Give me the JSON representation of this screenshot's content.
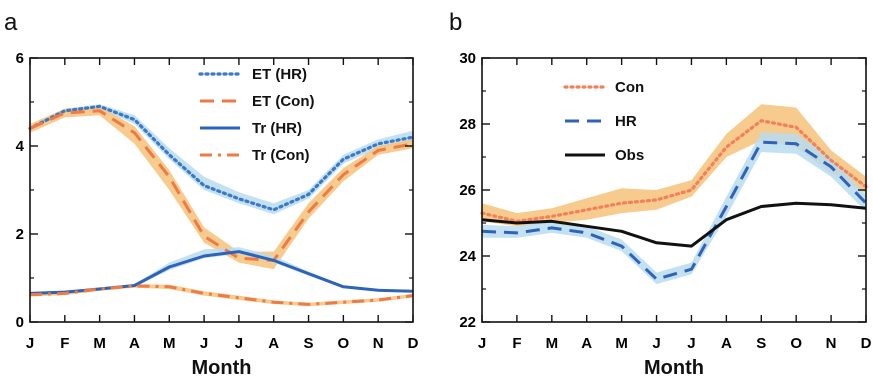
{
  "chart_data": [
    {
      "type": "line",
      "panel_label": "a",
      "xlabel": "Month",
      "ylabel": "",
      "categories": [
        "J",
        "F",
        "M",
        "A",
        "M",
        "J",
        "J",
        "A",
        "S",
        "O",
        "N",
        "D"
      ],
      "ylim": [
        0,
        6
      ],
      "yticks": [
        0,
        2,
        4,
        6
      ],
      "legend_position": "top-center",
      "series": [
        {
          "name": "ET (HR)",
          "style": "dotted",
          "color": "#3a78c8",
          "values": [
            4.4,
            4.8,
            4.9,
            4.6,
            3.8,
            3.1,
            2.8,
            2.55,
            2.9,
            3.7,
            4.05,
            4.2
          ],
          "band_lo": [
            4.35,
            4.75,
            4.85,
            4.5,
            3.7,
            3.0,
            2.7,
            2.45,
            2.8,
            3.6,
            3.95,
            4.1
          ],
          "band_hi": [
            4.45,
            4.85,
            4.95,
            4.7,
            3.95,
            3.3,
            2.95,
            2.7,
            3.0,
            3.8,
            4.15,
            4.35
          ],
          "band_color": "#b8dcef"
        },
        {
          "name": "ET (Con)",
          "style": "dashed",
          "color": "#ee7a45",
          "values": [
            4.4,
            4.75,
            4.8,
            4.3,
            3.3,
            1.95,
            1.45,
            1.4,
            2.5,
            3.35,
            3.9,
            4.05
          ],
          "band_lo": [
            4.3,
            4.65,
            4.7,
            4.05,
            3.0,
            1.8,
            1.35,
            1.2,
            2.35,
            3.2,
            3.8,
            3.95
          ],
          "band_hi": [
            4.5,
            4.85,
            4.9,
            4.45,
            3.45,
            2.15,
            1.6,
            1.6,
            2.7,
            3.5,
            4.0,
            4.15
          ],
          "band_color": "#f6c27a"
        },
        {
          "name": "Tr (HR)",
          "style": "solid",
          "color": "#2f63b8",
          "values": [
            0.65,
            0.68,
            0.75,
            0.83,
            1.25,
            1.5,
            1.6,
            1.4,
            1.1,
            0.8,
            0.72,
            0.7
          ],
          "band_lo": [
            0.62,
            0.65,
            0.72,
            0.8,
            1.18,
            1.45,
            1.55,
            1.35,
            1.05,
            0.77,
            0.69,
            0.67
          ],
          "band_hi": [
            0.68,
            0.71,
            0.78,
            0.86,
            1.35,
            1.65,
            1.7,
            1.5,
            1.15,
            0.83,
            0.75,
            0.73
          ],
          "band_color": "#b8dcef"
        },
        {
          "name": "Tr (Con)",
          "style": "dashdot",
          "color": "#ee7a45",
          "values": [
            0.62,
            0.65,
            0.75,
            0.82,
            0.8,
            0.65,
            0.55,
            0.45,
            0.4,
            0.45,
            0.5,
            0.6
          ],
          "band_lo": [
            0.58,
            0.61,
            0.71,
            0.78,
            0.75,
            0.6,
            0.5,
            0.41,
            0.36,
            0.41,
            0.46,
            0.56
          ],
          "band_hi": [
            0.66,
            0.69,
            0.79,
            0.86,
            0.85,
            0.7,
            0.6,
            0.49,
            0.44,
            0.49,
            0.54,
            0.64
          ],
          "band_color": "#f6c27a"
        }
      ]
    },
    {
      "type": "line",
      "panel_label": "b",
      "xlabel": "Month",
      "ylabel": "",
      "categories": [
        "J",
        "F",
        "M",
        "A",
        "M",
        "J",
        "J",
        "A",
        "S",
        "O",
        "N",
        "D"
      ],
      "ylim": [
        22,
        30
      ],
      "yticks": [
        22,
        24,
        26,
        28,
        30
      ],
      "legend_position": "top-left",
      "series": [
        {
          "name": "Con",
          "style": "dotted",
          "color": "#f2805a",
          "values": [
            25.3,
            25.05,
            25.2,
            25.4,
            25.6,
            25.7,
            26.0,
            27.3,
            28.1,
            27.9,
            26.9,
            26.1
          ],
          "band_lo": [
            25.05,
            24.9,
            25.0,
            25.1,
            25.3,
            25.4,
            25.8,
            27.0,
            27.5,
            27.3,
            26.5,
            25.9
          ],
          "band_hi": [
            25.6,
            25.3,
            25.45,
            25.75,
            26.05,
            26.0,
            26.3,
            27.7,
            28.6,
            28.5,
            27.2,
            26.4
          ],
          "band_color": "#f6c27a"
        },
        {
          "name": "HR",
          "style": "dashed",
          "color": "#2f63b8",
          "values": [
            24.75,
            24.7,
            24.85,
            24.7,
            24.3,
            23.3,
            23.6,
            25.5,
            27.45,
            27.4,
            26.7,
            25.6
          ],
          "band_lo": [
            24.55,
            24.55,
            24.7,
            24.55,
            24.15,
            23.15,
            23.45,
            25.2,
            27.15,
            27.1,
            26.4,
            25.35
          ],
          "band_hi": [
            24.95,
            24.9,
            25.05,
            24.9,
            24.5,
            23.5,
            23.8,
            25.8,
            27.75,
            27.7,
            27.0,
            25.85
          ],
          "band_color": "#b8dcef"
        },
        {
          "name": "Obs",
          "style": "solid",
          "color": "#111111",
          "values": [
            25.1,
            25.0,
            25.05,
            24.9,
            24.75,
            24.4,
            24.3,
            25.1,
            25.5,
            25.6,
            25.55,
            25.45
          ]
        }
      ]
    }
  ]
}
